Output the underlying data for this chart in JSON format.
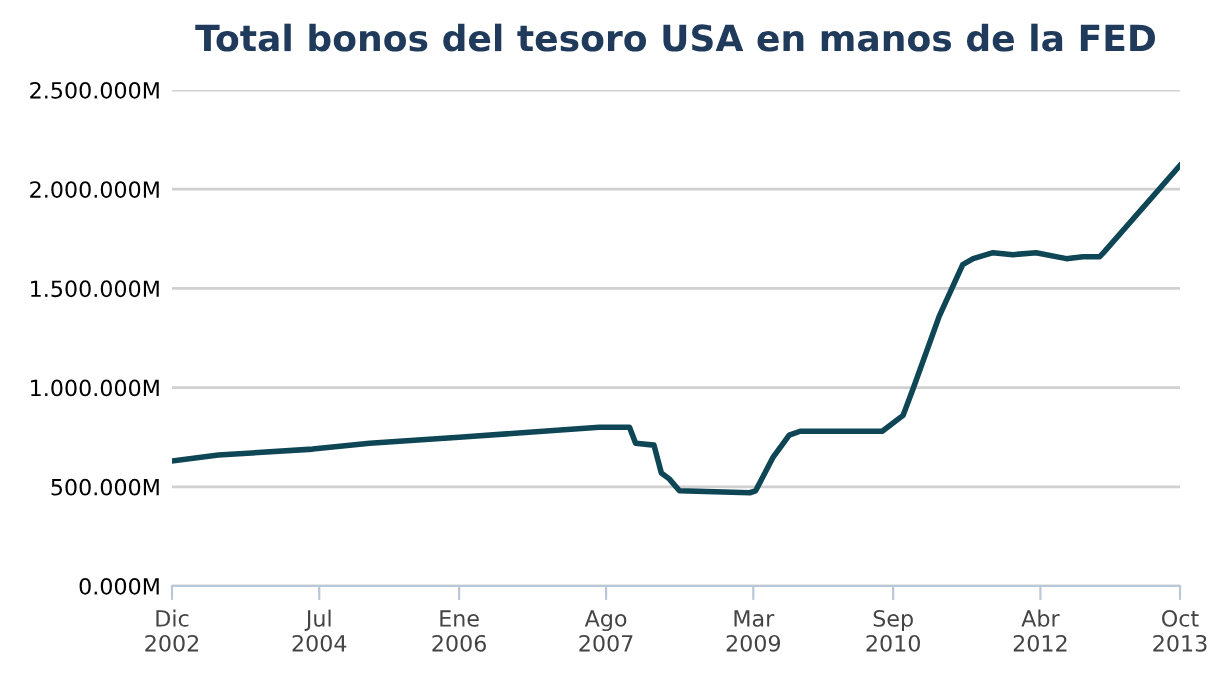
{
  "chart_data": {
    "type": "line",
    "title": "Total bonos del tesoro USA en manos de la FED",
    "x": [
      "2002-12-01",
      "2003-06-01",
      "2004-06-05",
      "2005-01-15",
      "2006-01-01",
      "2007-07-05",
      "2007-11-01",
      "2007-11-25",
      "2008-02-05",
      "2008-03-05",
      "2008-04-05",
      "2008-05-15",
      "2009-02-15",
      "2009-03-10",
      "2009-05-18",
      "2009-07-20",
      "2009-09-01",
      "2010-07-20",
      "2010-10-10",
      "2010-11-20",
      "2011-03-01",
      "2011-06-01",
      "2011-07-12",
      "2011-09-28",
      "2011-12-15",
      "2012-03-15",
      "2012-07-12",
      "2012-09-15",
      "2012-11-20",
      "2012-12-05",
      "2013-10-01"
    ],
    "series": [
      {
        "color": "#0e4656",
        "values": [
          630000,
          660000,
          690000,
          720000,
          750000,
          800000,
          800000,
          720000,
          710000,
          570000,
          540000,
          480000,
          470000,
          480000,
          650000,
          760000,
          780000,
          780000,
          860000,
          1000000,
          1360000,
          1620000,
          1650000,
          1680000,
          1670000,
          1680000,
          1650000,
          1660000,
          1660000,
          1680000,
          2120000
        ]
      }
    ],
    "xlim": [
      "2002-12-01",
      "2013-10-01"
    ],
    "xticks": [
      {
        "value": "2002-12-01",
        "label": "Dic\n2002"
      },
      {
        "value": "2004-07-01",
        "label": "Jul\n2004"
      },
      {
        "value": "2006-01-01",
        "label": "Ene\n2006"
      },
      {
        "value": "2007-08-01",
        "label": "Ago\n2007"
      },
      {
        "value": "2009-03-01",
        "label": "Mar\n2009"
      },
      {
        "value": "2010-09-01",
        "label": "Sep\n2010"
      },
      {
        "value": "2012-04-01",
        "label": "Abr\n2012"
      },
      {
        "value": "2013-10-01",
        "label": "Oct\n2013"
      }
    ],
    "ylim": [
      0,
      2500000
    ],
    "yticks": [
      {
        "value": 0,
        "label": "0.000M"
      },
      {
        "value": 500000,
        "label": "500.000M"
      },
      {
        "value": 1000000,
        "label": "1.000.000M"
      },
      {
        "value": 1500000,
        "label": "1.500.000M"
      },
      {
        "value": 2000000,
        "label": "2.000.000M"
      },
      {
        "value": 2500000,
        "label": "2.500.000M"
      }
    ],
    "grid": "y",
    "marker": "none",
    "line_style": "solid"
  }
}
